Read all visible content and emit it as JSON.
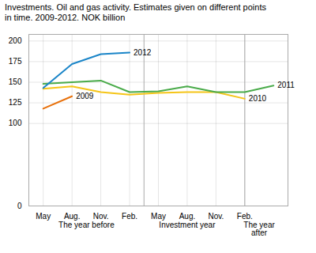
{
  "chart_data": {
    "type": "line",
    "title": "Investments. Oil and gas activity. Estimates given on different points\nin time. 2009-2012. NOK billion",
    "categories": [
      "May",
      "Aug.",
      "Nov.",
      "Feb.",
      "May",
      "Aug.",
      "Nov.",
      "Feb.",
      null
    ],
    "series": [
      {
        "name": "2009",
        "color": "#e8700a",
        "values": [
          118,
          133,
          null,
          null,
          null,
          null,
          null,
          null,
          null
        ]
      },
      {
        "name": "2010",
        "color": "#f5c518",
        "values": [
          142,
          145,
          138,
          135,
          137,
          138,
          138,
          130,
          null
        ]
      },
      {
        "name": "2011",
        "color": "#4aab4a",
        "values": [
          148,
          150,
          152,
          138,
          139,
          145,
          138,
          138,
          146
        ]
      },
      {
        "name": "2012",
        "color": "#1a85c8",
        "values": [
          143,
          172,
          184,
          186,
          null,
          null,
          null,
          null,
          null
        ]
      }
    ],
    "ylim": [
      0,
      208
    ],
    "yticks": [
      0,
      100,
      125,
      150,
      175,
      200
    ],
    "grid": true,
    "annotations": [
      "The year before",
      "Investment year",
      "The year\nafter"
    ]
  }
}
